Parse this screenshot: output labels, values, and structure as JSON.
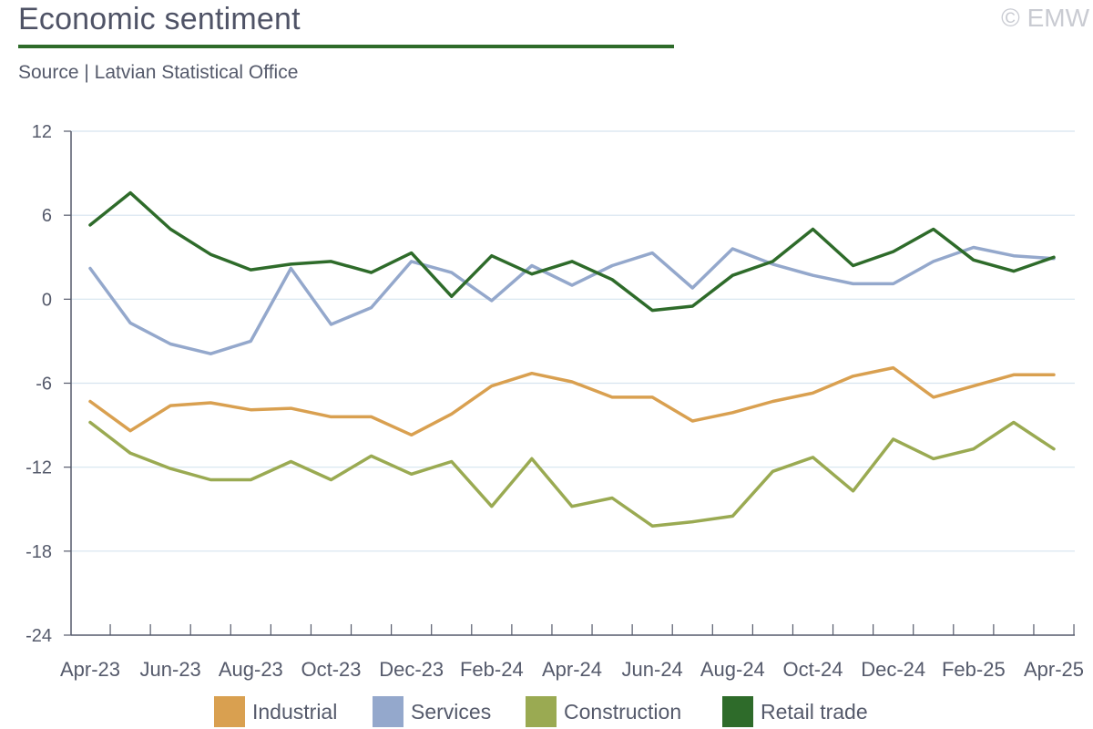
{
  "header": {
    "title": "Economic sentiment",
    "source": "Source | Latvian Statistical Office",
    "copyright": "© EMW"
  },
  "chart_data": {
    "type": "line",
    "title": "Economic sentiment",
    "ylim": [
      -24,
      12
    ],
    "yticks": [
      12,
      6,
      0,
      -6,
      -12,
      -18,
      -24
    ],
    "grid": true,
    "legend_position": "bottom",
    "x": [
      "Apr-23",
      "May-23",
      "Jun-23",
      "Jul-23",
      "Aug-23",
      "Sep-23",
      "Oct-23",
      "Nov-23",
      "Dec-23",
      "Jan-24",
      "Feb-24",
      "Mar-24",
      "Apr-24",
      "May-24",
      "Jun-24",
      "Jul-24",
      "Aug-24",
      "Sep-24",
      "Oct-24",
      "Nov-24",
      "Dec-24",
      "Jan-25",
      "Feb-25",
      "Mar-25",
      "Apr-25"
    ],
    "xtick_labels": [
      "Apr-23",
      "Jun-23",
      "Aug-23",
      "Oct-23",
      "Dec-23",
      "Feb-24",
      "Apr-24",
      "Jun-24",
      "Aug-24",
      "Oct-24",
      "Dec-24",
      "Feb-25",
      "Apr-25"
    ],
    "series": [
      {
        "name": "Industrial",
        "color": "#d9a050",
        "values": [
          -7.3,
          -9.4,
          -7.6,
          -7.4,
          -7.9,
          -7.8,
          -8.4,
          -8.4,
          -9.7,
          -8.2,
          -6.2,
          -5.3,
          -5.9,
          -7.0,
          -7.0,
          -8.7,
          -8.1,
          -7.3,
          -6.7,
          -5.5,
          -4.9,
          -7.0,
          -6.2,
          -5.4,
          -5.4
        ]
      },
      {
        "name": "Services",
        "color": "#94a8cc",
        "values": [
          2.2,
          -1.7,
          -3.2,
          -3.9,
          -3.0,
          2.2,
          -1.8,
          -0.6,
          2.7,
          1.9,
          -0.1,
          2.4,
          1.0,
          2.4,
          3.3,
          0.8,
          3.6,
          2.5,
          1.7,
          1.1,
          1.1,
          2.7,
          3.7,
          3.1,
          2.9
        ]
      },
      {
        "name": "Construction",
        "color": "#9aaa52",
        "values": [
          -8.8,
          -11.0,
          -12.1,
          -12.9,
          -12.9,
          -11.6,
          -12.9,
          -11.2,
          -12.5,
          -11.6,
          -14.8,
          -11.4,
          -14.8,
          -14.2,
          -16.2,
          -15.9,
          -15.5,
          -12.3,
          -11.3,
          -13.7,
          -10.0,
          -11.4,
          -10.7,
          -8.8,
          -10.7
        ]
      },
      {
        "name": "Retail trade",
        "color": "#2e6b2a",
        "values": [
          5.3,
          7.6,
          5.0,
          3.2,
          2.1,
          2.5,
          2.7,
          1.9,
          3.3,
          0.2,
          3.1,
          1.8,
          2.7,
          1.4,
          -0.8,
          -0.5,
          1.7,
          2.7,
          5.0,
          2.4,
          3.4,
          5.0,
          2.8,
          2.0,
          3.0
        ]
      }
    ]
  }
}
